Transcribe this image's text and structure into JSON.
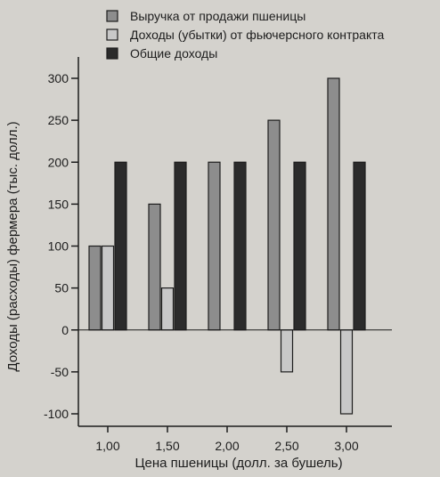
{
  "chart_data": {
    "type": "bar",
    "xlabel": "Цена пшеницы (долл. за бушель)",
    "ylabel": "Доходы (расходы) фермера (тыс. долл.)",
    "categories": [
      "1,00",
      "1,50",
      "2,00",
      "2,50",
      "3,00"
    ],
    "ylim": [
      -100,
      300
    ],
    "yticks": [
      -100,
      -50,
      0,
      50,
      100,
      150,
      200,
      250,
      300
    ],
    "ytick_labels": [
      "-100",
      "-50",
      "0",
      "50",
      "100",
      "150",
      "200",
      "250",
      "300"
    ],
    "series": [
      {
        "name": "Выручка от продажи пшеницы",
        "values": [
          100,
          150,
          200,
          250,
          300
        ],
        "color": "#8d8d8d"
      },
      {
        "name": "Доходы (убытки) от фьючерсного контракта",
        "values": [
          100,
          50,
          0,
          -50,
          -100
        ],
        "color": "#c8c8c8"
      },
      {
        "name": "Общие доходы",
        "values": [
          200,
          200,
          200,
          200,
          200
        ],
        "color": "#2b2b2b"
      }
    ],
    "legend_position": "top",
    "grid": false
  }
}
